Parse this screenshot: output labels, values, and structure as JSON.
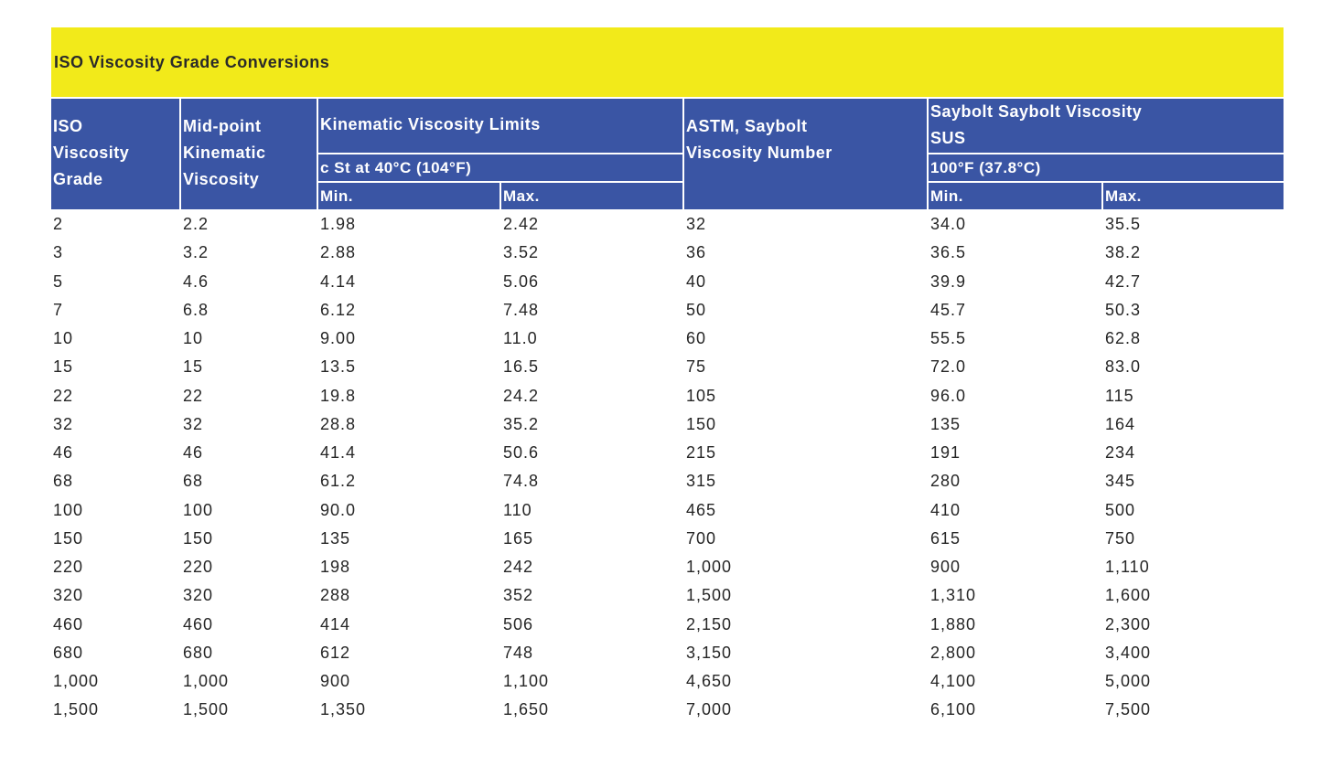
{
  "title": "ISO Viscosity Grade Conversions",
  "headers": {
    "iso_grade": [
      "ISO",
      "Viscosity",
      "Grade"
    ],
    "midpoint": [
      "Mid-point",
      "Kinematic",
      "Viscosity"
    ],
    "kinematic_limits": "Kinematic Viscosity Limits",
    "kinematic_unit": "c St at 40°C (104°F)",
    "kin_min": "Min.",
    "kin_max": "Max.",
    "astm": [
      "ASTM, Saybolt",
      "Viscosity Number"
    ],
    "saybolt": [
      "Saybolt Saybolt Viscosity",
      "SUS"
    ],
    "saybolt_unit": "100°F (37.8°C)",
    "say_min": "Min.",
    "say_max": "Max."
  },
  "rows": [
    [
      "2",
      "2.2",
      "1.98",
      "2.42",
      "32",
      "34.0",
      "35.5"
    ],
    [
      "3",
      "3.2",
      "2.88",
      "3.52",
      "36",
      "36.5",
      "38.2"
    ],
    [
      "5",
      "4.6",
      "4.14",
      "5.06",
      "40",
      "39.9",
      "42.7"
    ],
    [
      "7",
      "6.8",
      "6.12",
      "7.48",
      "50",
      "45.7",
      "50.3"
    ],
    [
      "10",
      "10",
      "9.00",
      "11.0",
      "60",
      "55.5",
      "62.8"
    ],
    [
      "15",
      "15",
      "13.5",
      "16.5",
      "75",
      "72.0",
      "83.0"
    ],
    [
      "22",
      "22",
      "19.8",
      "24.2",
      "105",
      "96.0",
      "115"
    ],
    [
      "32",
      "32",
      "28.8",
      "35.2",
      "150",
      "135",
      "164"
    ],
    [
      "46",
      "46",
      "41.4",
      "50.6",
      "215",
      "191",
      "234"
    ],
    [
      "68",
      "68",
      "61.2",
      "74.8",
      "315",
      "280",
      "345"
    ],
    [
      "100",
      "100",
      "90.0",
      "110",
      "465",
      "410",
      "500"
    ],
    [
      "150",
      "150",
      "135",
      "165",
      "700",
      "615",
      "750"
    ],
    [
      "220",
      "220",
      "198",
      "242",
      "1,000",
      "900",
      "1,110"
    ],
    [
      "320",
      "320",
      "288",
      "352",
      "1,500",
      "1,310",
      "1,600"
    ],
    [
      "460",
      "460",
      "414",
      "506",
      "2,150",
      "1,880",
      "2,300"
    ],
    [
      "680",
      "680",
      "612",
      "748",
      "3,150",
      "2,800",
      "3,400"
    ],
    [
      "1,000",
      "1,000",
      "900",
      "1,100",
      "4,650",
      "4,100",
      "5,000"
    ],
    [
      "1,500",
      "1,500",
      "1,350",
      "1,650",
      "7,000",
      "6,100",
      "7,500"
    ]
  ],
  "colors": {
    "title_background": "#f2ea1a",
    "header_background": "#3a55a4",
    "header_text": "#ffffff",
    "body_text": "#262626"
  }
}
